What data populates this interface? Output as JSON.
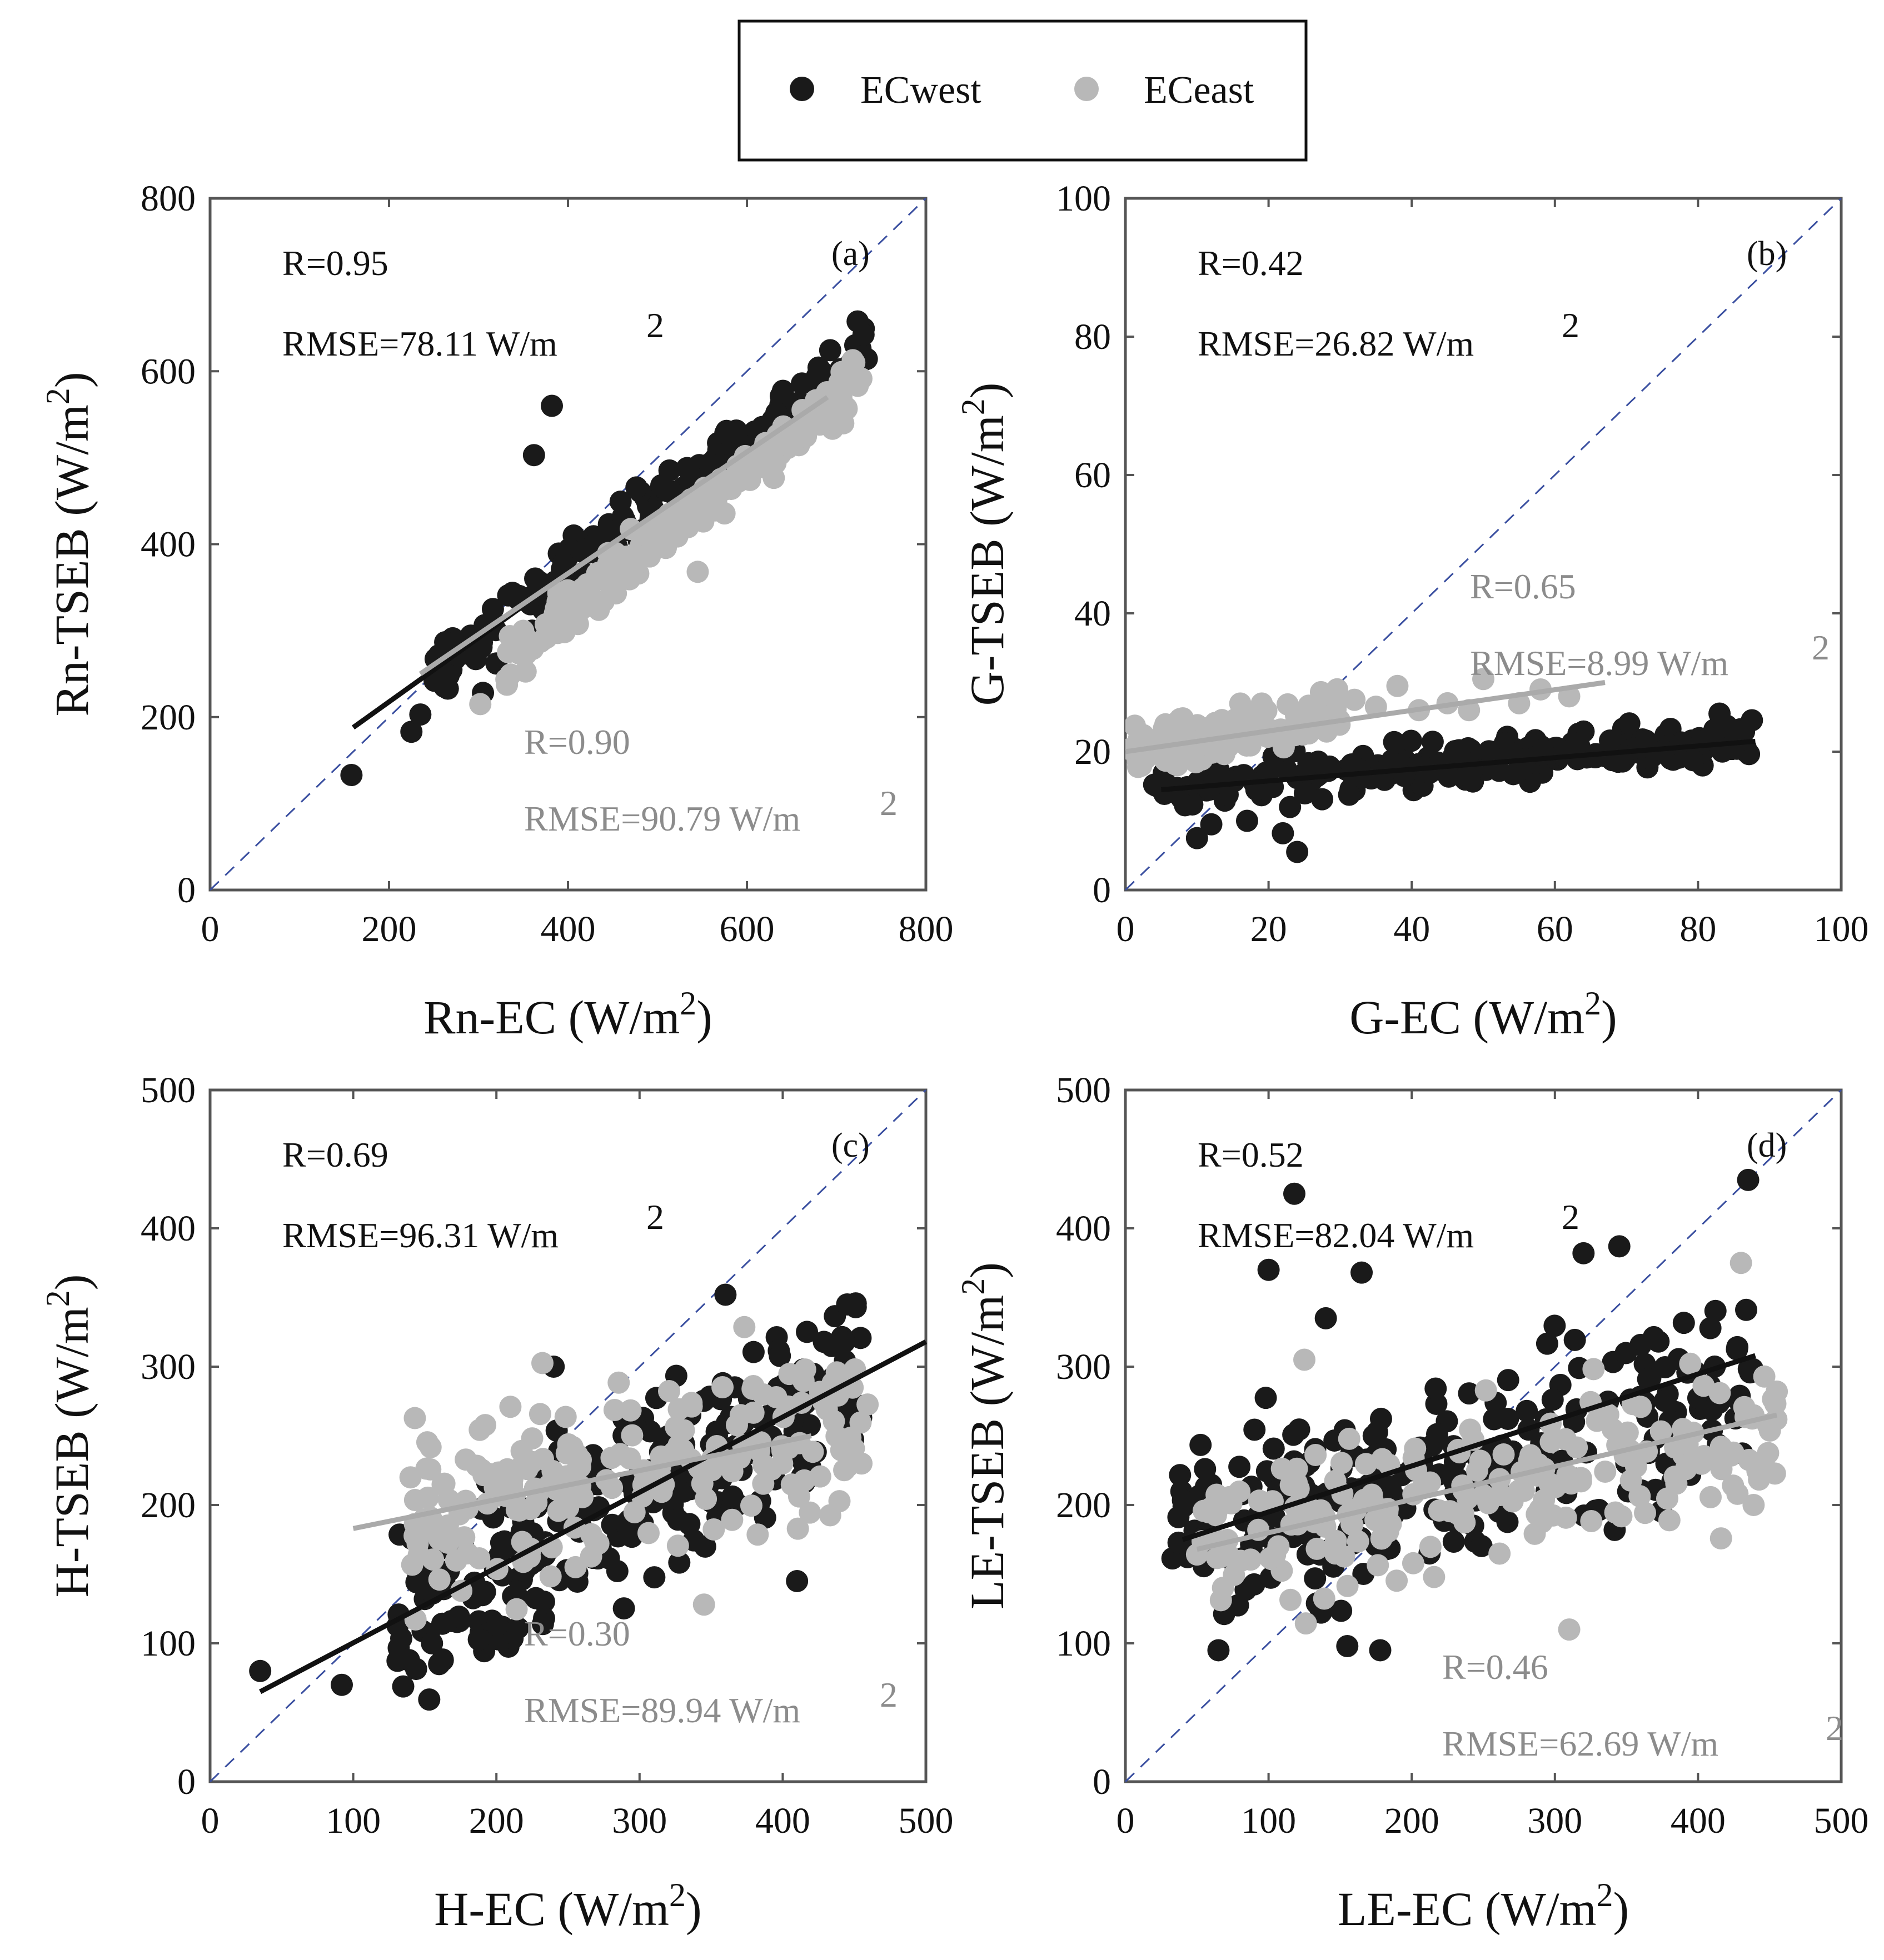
{
  "legend": {
    "entries": [
      {
        "name": "ECwest",
        "color": "#1a1a1a"
      },
      {
        "name": "ECeast",
        "color": "#b8b8b8"
      }
    ]
  },
  "colors": {
    "west": "#1a1a1a",
    "east": "#b8b8b8",
    "one_to_one": "#3a4fa0",
    "axis": "#555555"
  },
  "chart_data": [
    {
      "type": "scatter",
      "panel_label": "(a)",
      "xlabel": "Rn-EC (W/m",
      "ylabel": "Rn-TSEB (W/m",
      "label_sup": "2",
      "label_close": ")",
      "xlim": [
        0,
        800
      ],
      "ylim": [
        0,
        800
      ],
      "xticks": [
        0,
        200,
        400,
        600,
        800
      ],
      "yticks": [
        0,
        200,
        400,
        600,
        800
      ],
      "tick_labels_x": [
        "0",
        "200",
        "400",
        "600",
        "800"
      ],
      "tick_labels_y": [
        "0",
        "200",
        "400",
        "600",
        "800"
      ],
      "west_stats": {
        "r": "R=0.95",
        "rmse": "RMSE=78.11 W/m",
        "sup": "2"
      },
      "east_stats": {
        "r": "R=0.90",
        "rmse": "RMSE=90.79 W/m",
        "sup": "2"
      },
      "series": [
        {
          "name": "ECwest",
          "fit": [
            [
              160,
              188
            ],
            [
              345,
              325
            ]
          ],
          "gen": {
            "n": 160,
            "x0": 250,
            "x1": 735,
            "slope": 0.78,
            "icpt": 58,
            "noise": 22
          },
          "points": [
            [
              158,
              133
            ],
            [
              225,
              183
            ],
            [
              235,
              203
            ],
            [
              262,
              235
            ],
            [
              305,
              228
            ],
            [
              320,
              262
            ],
            [
              362,
              503
            ],
            [
              382,
              560
            ],
            [
              360,
              300
            ]
          ]
        },
        {
          "name": "ECeast",
          "fit": [
            [
              235,
              250
            ],
            [
              690,
              570
            ]
          ],
          "gen": {
            "n": 200,
            "x0": 330,
            "x1": 730,
            "slope": 0.82,
            "icpt": -5,
            "noise": 20
          },
          "points": [
            [
              302,
              215
            ],
            [
              545,
              368
            ],
            [
              720,
              610
            ]
          ]
        }
      ]
    },
    {
      "type": "scatter",
      "panel_label": "(b)",
      "xlabel": "G-EC (W/m",
      "ylabel": "G-TSEB (W/m",
      "label_sup": "2",
      "label_close": ")",
      "xlim": [
        0,
        100
      ],
      "ylim": [
        0,
        100
      ],
      "xticks": [
        0,
        20,
        40,
        60,
        80,
        100
      ],
      "yticks": [
        0,
        20,
        40,
        60,
        80,
        100
      ],
      "tick_labels_x": [
        "0",
        "20",
        "40",
        "60",
        "80",
        "100"
      ],
      "tick_labels_y": [
        "0",
        "20",
        "40",
        "60",
        "80",
        "100"
      ],
      "west_stats": {
        "r": "R=0.42",
        "rmse": "RMSE=26.82 W/m",
        "sup": "2"
      },
      "east_stats": {
        "r": "R=0.65",
        "rmse": "RMSE=8.99 W/m",
        "sup": "2"
      },
      "series": [
        {
          "name": "ECwest",
          "fit": [
            [
              5,
              14.5
            ],
            [
              88,
              21.5
            ]
          ],
          "gen": {
            "n": 240,
            "x0": 4,
            "x1": 88,
            "slope": 0.09,
            "icpt": 14,
            "noise": 2.3
          },
          "points": [
            [
              10,
              7.5
            ],
            [
              12,
              9.5
            ],
            [
              17,
              10
            ],
            [
              22,
              8.2
            ],
            [
              24,
              5.5
            ],
            [
              23,
              12
            ],
            [
              83,
              25.5
            ]
          ]
        },
        {
          "name": "ECeast",
          "fit": [
            [
              0,
              20
            ],
            [
              67,
              30
            ]
          ],
          "gen": {
            "n": 160,
            "x0": 0.5,
            "x1": 30,
            "slope": 0.22,
            "icpt": 19.5,
            "noise": 2.3
          },
          "points": [
            [
              38,
              29.5
            ],
            [
              50,
              30.5
            ],
            [
              55,
              27
            ],
            [
              62,
              28
            ],
            [
              41,
              26
            ],
            [
              45,
              27
            ],
            [
              32,
              27.5
            ],
            [
              35,
              26.5
            ],
            [
              48,
              26
            ],
            [
              58,
              29
            ]
          ]
        }
      ]
    },
    {
      "type": "scatter",
      "panel_label": "(c)",
      "xlabel": "H-EC (W/m",
      "ylabel": "H-TSEB (W/m",
      "label_sup": "2",
      "label_close": ")",
      "xlim": [
        0,
        500
      ],
      "ylim": [
        0,
        500
      ],
      "xticks": [
        0,
        100,
        200,
        300,
        400,
        500
      ],
      "yticks": [
        0,
        100,
        200,
        300,
        400,
        500
      ],
      "tick_labels_x": [
        "0",
        "100",
        "200",
        "300",
        "400",
        "500"
      ],
      "tick_labels_y": [
        "0",
        "100",
        "200",
        "300",
        "400",
        "500"
      ],
      "west_stats": {
        "r": "R=0.69",
        "rmse": "RMSE=96.31 W/m",
        "sup": "2"
      },
      "east_stats": {
        "r": "R=0.30",
        "rmse": "RMSE=89.94 W/m",
        "sup": "2"
      },
      "series": [
        {
          "name": "ECwest",
          "fit": [
            [
              35,
              65
            ],
            [
              500,
              318
            ]
          ],
          "gen": {
            "n": 260,
            "x0": 130,
            "x1": 455,
            "slope": 0.55,
            "icpt": 45,
            "noise": 48
          },
          "points": [
            [
              35,
              80
            ],
            [
              92,
              70
            ],
            [
              160,
              85
            ],
            [
              155,
              100
            ],
            [
              240,
              300
            ],
            [
              360,
              352
            ],
            [
              445,
              345
            ],
            [
              410,
              145
            ]
          ]
        },
        {
          "name": "ECeast",
          "fit": [
            [
              100,
              183
            ],
            [
              420,
              250
            ]
          ],
          "gen": {
            "n": 200,
            "x0": 140,
            "x1": 460,
            "slope": 0.22,
            "icpt": 160,
            "noise": 45
          },
          "points": [
            [
              140,
              220
            ],
            [
              145,
              172
            ],
            [
              345,
              128
            ],
            [
              455,
              230
            ]
          ]
        }
      ]
    },
    {
      "type": "scatter",
      "panel_label": "(d)",
      "xlabel": "LE-EC (W/m",
      "ylabel": "LE-TSEB (W/m",
      "label_sup": "2",
      "label_close": ")",
      "xlim": [
        0,
        500
      ],
      "ylim": [
        0,
        500
      ],
      "xticks": [
        0,
        100,
        200,
        300,
        400,
        500
      ],
      "yticks": [
        0,
        100,
        200,
        300,
        400,
        500
      ],
      "tick_labels_x": [
        "0",
        "100",
        "200",
        "300",
        "400",
        "500"
      ],
      "tick_labels_y": [
        "0",
        "100",
        "200",
        "300",
        "400",
        "500"
      ],
      "west_stats": {
        "r": "R=0.52",
        "rmse": "RMSE=82.04 W/m",
        "sup": "2"
      },
      "east_stats": {
        "r": "R=0.46",
        "rmse": "RMSE=62.69 W/m",
        "sup": "2"
      },
      "series": [
        {
          "name": "ECwest",
          "fit": [
            [
              40,
              175
            ],
            [
              440,
              308
            ]
          ],
          "gen": {
            "n": 260,
            "x0": 30,
            "x1": 440,
            "slope": 0.28,
            "icpt": 165,
            "noise": 48
          },
          "points": [
            [
              118,
              425
            ],
            [
              435,
              435
            ],
            [
              100,
              370
            ],
            [
              165,
              368
            ],
            [
              320,
              382
            ],
            [
              345,
              387
            ],
            [
              65,
              95
            ],
            [
              155,
              98
            ],
            [
              178,
              95
            ],
            [
              140,
              335
            ]
          ]
        },
        {
          "name": "ECeast",
          "fit": [
            [
              50,
              168
            ],
            [
              455,
              265
            ]
          ],
          "gen": {
            "n": 200,
            "x0": 50,
            "x1": 455,
            "slope": 0.2,
            "icpt": 158,
            "noise": 38
          },
          "points": [
            [
              310,
              110
            ],
            [
              430,
              375
            ],
            [
              455,
              282
            ],
            [
              125,
              305
            ]
          ]
        }
      ]
    }
  ]
}
